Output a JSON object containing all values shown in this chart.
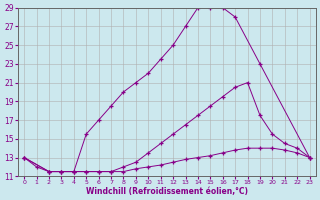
{
  "xlabel": "Windchill (Refroidissement éolien,°C)",
  "background_color": "#cce8ee",
  "grid_color": "#b0b0b0",
  "line_color": "#880088",
  "xlim": [
    -0.5,
    23.5
  ],
  "ylim": [
    11,
    29
  ],
  "xticks": [
    0,
    1,
    2,
    3,
    4,
    5,
    6,
    7,
    8,
    9,
    10,
    11,
    12,
    13,
    14,
    15,
    16,
    17,
    18,
    19,
    20,
    21,
    22,
    23
  ],
  "yticks": [
    11,
    13,
    15,
    17,
    19,
    21,
    23,
    25,
    27,
    29
  ],
  "curve1_x": [
    0,
    1,
    2,
    3,
    4,
    5,
    6,
    7,
    8,
    9,
    10,
    11,
    12,
    13,
    14,
    15,
    16,
    17,
    19,
    23
  ],
  "curve1_y": [
    13.0,
    12.0,
    11.5,
    11.5,
    11.5,
    15.5,
    17.0,
    18.5,
    20.0,
    21.0,
    22.0,
    23.5,
    25.0,
    27.0,
    29.0,
    29.0,
    29.0,
    28.0,
    23.0,
    13.0
  ],
  "curve2_x": [
    0,
    2,
    3,
    4,
    5,
    6,
    7,
    8,
    9,
    10,
    11,
    12,
    13,
    14,
    15,
    16,
    17,
    18,
    19,
    20,
    21,
    22,
    23
  ],
  "curve2_y": [
    13.0,
    11.5,
    11.5,
    11.5,
    11.5,
    11.5,
    11.5,
    12.0,
    12.5,
    13.5,
    14.5,
    15.5,
    16.5,
    17.5,
    18.5,
    19.5,
    20.5,
    21.0,
    17.5,
    15.5,
    14.5,
    14.0,
    13.0
  ],
  "curve3_x": [
    0,
    2,
    3,
    4,
    5,
    6,
    7,
    8,
    9,
    10,
    11,
    12,
    13,
    14,
    15,
    16,
    17,
    18,
    19,
    20,
    21,
    22,
    23
  ],
  "curve3_y": [
    13.0,
    11.5,
    11.5,
    11.5,
    11.5,
    11.5,
    11.5,
    11.5,
    11.8,
    12.0,
    12.2,
    12.5,
    12.8,
    13.0,
    13.2,
    13.5,
    13.8,
    14.0,
    14.0,
    14.0,
    13.8,
    13.5,
    13.0
  ]
}
